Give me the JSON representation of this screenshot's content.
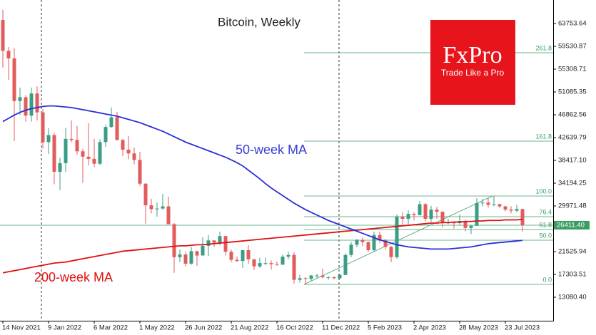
{
  "chart_data": {
    "type": "candlestick",
    "title": "Bitcoin, Weekly",
    "logo": {
      "brand": "FxPro",
      "slogan": "Trade Like a Pro"
    },
    "annotations": {
      "ma50": "50-week MA",
      "ma200": "200-week MA"
    },
    "colors": {
      "up": "#3a9e84",
      "down": "#e35b5b",
      "ma50": "#2a2fd6",
      "ma200": "#e01010",
      "fib": "#3a9e64"
    },
    "x_labels": [
      "14 Nov 2021",
      "9 Jan 2022",
      "6 Mar 2022",
      "1 May 2022",
      "26 Jun 2022",
      "21 Aug 2022",
      "16 Oct 2022",
      "11 Dec 2022",
      "5 Feb 2023",
      "2 Apr 2023",
      "28 May 2023",
      "23 Jul 2023"
    ],
    "open": [
      64400,
      58700,
      57300,
      49400,
      50100,
      46700,
      50800,
      47300,
      41800,
      43100,
      36300,
      37900,
      42400,
      42200,
      40100,
      39100,
      38700,
      37800,
      41800,
      44600,
      46400,
      42200,
      40400,
      39700,
      38500,
      34100,
      30100,
      29400,
      29500,
      29900,
      26600,
      20500,
      21000,
      19300,
      21600,
      20800,
      22600,
      23600,
      23200,
      24400,
      21500,
      20000,
      19800,
      21800,
      20100,
      18800,
      19400,
      19400,
      19200,
      19100,
      20600,
      20900,
      16300,
      16600,
      16500,
      17100,
      17100,
      16800,
      16800,
      16600,
      17200,
      20900,
      22800,
      23700,
      23300,
      21800,
      24600,
      23600,
      22400,
      20500,
      28000,
      27600,
      28500,
      28300,
      30300,
      27600,
      29300,
      28900,
      26800,
      26900,
      26800,
      27200,
      25900,
      26300,
      30500,
      30600,
      30200,
      30300,
      29900,
      29300,
      29100,
      29400
    ],
    "high": [
      66300,
      59400,
      59200,
      51900,
      50500,
      51900,
      52100,
      47900,
      44400,
      43500,
      38900,
      44400,
      45800,
      44800,
      40600,
      45300,
      42400,
      42300,
      45000,
      48200,
      47400,
      42400,
      42900,
      40800,
      40000,
      34200,
      31300,
      30600,
      32200,
      31700,
      26800,
      21900,
      21500,
      22400,
      21700,
      24200,
      24600,
      23600,
      25200,
      24400,
      21900,
      20600,
      21800,
      22700,
      20200,
      20400,
      20400,
      19900,
      19700,
      21000,
      21500,
      21400,
      17200,
      16800,
      17200,
      17400,
      18400,
      17000,
      16900,
      17400,
      21200,
      23300,
      23900,
      24200,
      23400,
      25200,
      25200,
      23900,
      22600,
      28400,
      28800,
      29200,
      28800,
      30900,
      30500,
      30000,
      29800,
      29000,
      27600,
      27100,
      28400,
      27400,
      26500,
      31400,
      31300,
      31500,
      31800,
      30400,
      30000,
      29900,
      30200,
      29500
    ],
    "low": [
      55600,
      53300,
      42000,
      46800,
      45600,
      45600,
      45800,
      40600,
      39600,
      34000,
      32900,
      36300,
      41800,
      39500,
      34300,
      37500,
      37200,
      37600,
      40900,
      44400,
      42100,
      39200,
      38600,
      37700,
      33700,
      26700,
      28600,
      28000,
      29300,
      26600,
      17600,
      19600,
      18800,
      19100,
      18900,
      20800,
      20700,
      22400,
      22700,
      20800,
      19600,
      19600,
      18500,
      19300,
      18100,
      18500,
      19000,
      18200,
      18900,
      19100,
      20100,
      15600,
      15800,
      15500,
      16100,
      16700,
      16600,
      16300,
      16400,
      16500,
      17200,
      20500,
      22300,
      22500,
      21500,
      21400,
      23100,
      21900,
      19600,
      20200,
      26600,
      26600,
      27300,
      28200,
      27100,
      27000,
      27600,
      26000,
      26600,
      25800,
      26500,
      25300,
      24800,
      26300,
      29900,
      29700,
      29900,
      29600,
      29000,
      28600,
      28800,
      25200
    ],
    "close": [
      58700,
      57300,
      49400,
      50100,
      46700,
      50800,
      47300,
      41800,
      43100,
      36300,
      37900,
      42400,
      42200,
      40100,
      39100,
      38700,
      37800,
      41800,
      44600,
      46400,
      42200,
      40400,
      39700,
      38500,
      34100,
      30100,
      29400,
      29500,
      29900,
      26600,
      20500,
      21000,
      19300,
      21600,
      20800,
      22600,
      23600,
      23200,
      24400,
      21500,
      20000,
      19800,
      21800,
      20100,
      18800,
      19400,
      19400,
      19200,
      19100,
      20600,
      20900,
      16300,
      16600,
      16500,
      17100,
      17100,
      16800,
      16800,
      16600,
      17200,
      20900,
      22800,
      23700,
      23300,
      21800,
      24600,
      23600,
      22400,
      20500,
      28000,
      27600,
      28500,
      28300,
      30300,
      27600,
      29300,
      28900,
      26800,
      26900,
      26800,
      27200,
      25900,
      26300,
      30500,
      30600,
      30200,
      30300,
      29900,
      29300,
      29100,
      29400,
      26411.4
    ],
    "ma50": [
      45600,
      46200,
      46800,
      47300,
      47700,
      48000,
      48200,
      48400,
      48500,
      48500,
      48400,
      48300,
      48200,
      48000,
      47800,
      47600,
      47400,
      47200,
      47000,
      46800,
      46600,
      46300,
      46000,
      45700,
      45400,
      45000,
      44600,
      44200,
      43800,
      43300,
      42800,
      42300,
      41800,
      41400,
      41000,
      40600,
      40200,
      39800,
      39400,
      39000,
      38500,
      38000,
      37400,
      36600,
      35800,
      35000,
      34100,
      33300,
      32600,
      31900,
      31200,
      30500,
      29900,
      29300,
      28800,
      28300,
      27800,
      27300,
      26900,
      26500,
      26100,
      25700,
      25300,
      24900,
      24500,
      24100,
      23700,
      23400,
      23100,
      22800,
      22600,
      22400,
      22300,
      22200,
      22100,
      22000,
      22000,
      22000,
      22000,
      22100,
      22200,
      22300,
      22400,
      22600,
      22800,
      23000,
      23100,
      23200,
      23300,
      23400,
      23500,
      23600
    ],
    "ma200": [
      17600,
      17800,
      18000,
      18200,
      18400,
      18600,
      18800,
      19000,
      19200,
      19400,
      19500,
      19600,
      19800,
      20000,
      20200,
      20400,
      20600,
      20800,
      21000,
      21200,
      21400,
      21600,
      21700,
      21800,
      21900,
      22000,
      22100,
      22200,
      22300,
      22400,
      22500,
      22600,
      22600,
      22700,
      22800,
      22800,
      22900,
      23000,
      23100,
      23200,
      23300,
      23400,
      23500,
      23600,
      23700,
      23800,
      23900,
      24000,
      24100,
      24200,
      24300,
      24400,
      24500,
      24600,
      24700,
      24800,
      24900,
      25000,
      25100,
      25200,
      25300,
      25400,
      25500,
      25600,
      25700,
      25800,
      25900,
      26000,
      26100,
      26200,
      26300,
      26400,
      26500,
      26600,
      26700,
      26800,
      26800,
      26900,
      26900,
      27000,
      27000,
      27100,
      27100,
      27200,
      27200,
      27300,
      27300,
      27300,
      27400,
      27400,
      27400,
      27500
    ],
    "fib_levels": [
      {
        "label": "261.8",
        "price": 58343
      },
      {
        "label": "161.8",
        "price": 41980
      },
      {
        "label": "100.0",
        "price": 31818
      },
      {
        "label": "76.4",
        "price": 27992
      },
      {
        "label": "61.8",
        "price": 25617
      },
      {
        "label": "50.0",
        "price": 23637
      },
      {
        "label": "0.0",
        "price": 15456
      }
    ],
    "current_price": {
      "value": 26411.4,
      "label": "26411.40"
    },
    "ylim": [
      8726,
      68108
    ],
    "yticks": [
      63753.64,
      59530.87,
      55308.71,
      51085.35,
      46862.56,
      42639.79,
      {
        "value": 38417.1,
        "label": "38417.10"
      },
      34194.25,
      29971.48,
      21525.94,
      17303.51,
      {
        "value": 13080.4,
        "label": "13080.40"
      }
    ]
  }
}
